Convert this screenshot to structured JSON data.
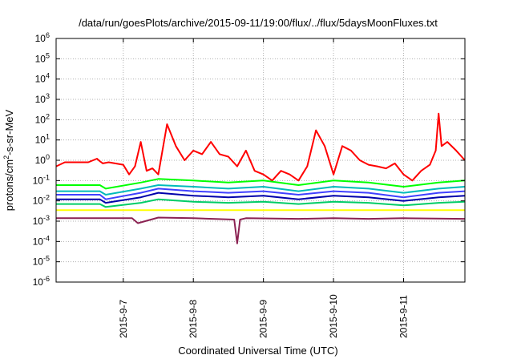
{
  "chart_data": {
    "type": "line",
    "title": "/data/run/goesPlots/archive/2015-09-11/19:00/flux/../flux/5daysMoonFluxes.txt",
    "xlabel": "Coordinated Universal Time (UTC)",
    "ylabel": {
      "pre": "protons/cm",
      "sup": "2",
      "post": "-s-sr-MeV"
    },
    "x_range": [
      "2015-09-06 01:00",
      "2015-09-11 21:00"
    ],
    "x_ticks": [
      "2015-9-7",
      "2015-9-8",
      "2015-9-9",
      "2015-9-10",
      "2015-9-11"
    ],
    "y_scale": "log",
    "ylim": [
      1e-06,
      1000000.0
    ],
    "y_ticks": [
      {
        "base": "10",
        "exp": "-6"
      },
      {
        "base": "10",
        "exp": "-5"
      },
      {
        "base": "10",
        "exp": "-4"
      },
      {
        "base": "10",
        "exp": "-3"
      },
      {
        "base": "10",
        "exp": "-2"
      },
      {
        "base": "10",
        "exp": "-1"
      },
      {
        "base": "10",
        "exp": "0"
      },
      {
        "base": "10",
        "exp": "1"
      },
      {
        "base": "10",
        "exp": "2"
      },
      {
        "base": "10",
        "exp": "3"
      },
      {
        "base": "10",
        "exp": "4"
      },
      {
        "base": "10",
        "exp": "5"
      },
      {
        "base": "10",
        "exp": "6"
      }
    ],
    "grid": true,
    "series": [
      {
        "color": "#ff0000",
        "x": [
          "2015-09-06 01:00",
          "2015-09-06 04:00",
          "2015-09-06 06:00",
          "2015-09-06 12:00",
          "2015-09-06 15:00",
          "2015-09-06 16:00",
          "2015-09-06 17:00",
          "2015-09-06 19:00",
          "2015-09-07 00:00",
          "2015-09-07 02:00",
          "2015-09-07 04:00",
          "2015-09-07 06:00",
          "2015-09-07 08:00",
          "2015-09-07 10:00",
          "2015-09-07 12:00",
          "2015-09-07 15:00",
          "2015-09-07 18:00",
          "2015-09-07 21:00",
          "2015-09-08 00:00",
          "2015-09-08 03:00",
          "2015-09-08 06:00",
          "2015-09-08 09:00",
          "2015-09-08 12:00",
          "2015-09-08 15:00",
          "2015-09-08 18:00",
          "2015-09-08 21:00",
          "2015-09-09 00:00",
          "2015-09-09 03:00",
          "2015-09-09 06:00",
          "2015-09-09 09:00",
          "2015-09-09 12:00",
          "2015-09-09 15:00",
          "2015-09-09 18:00",
          "2015-09-09 21:00",
          "2015-09-10 00:00",
          "2015-09-10 03:00",
          "2015-09-10 06:00",
          "2015-09-10 09:00",
          "2015-09-10 12:00",
          "2015-09-10 15:00",
          "2015-09-10 18:00",
          "2015-09-10 21:00",
          "2015-09-11 00:00",
          "2015-09-11 03:00",
          "2015-09-11 06:00",
          "2015-09-11 09:00",
          "2015-09-11 11:00",
          "2015-09-11 12:00",
          "2015-09-11 13:00",
          "2015-09-11 15:00",
          "2015-09-11 18:00",
          "2015-09-11 21:00"
        ],
        "y": [
          0.5,
          0.8,
          0.8,
          0.8,
          1.2,
          0.9,
          0.7,
          0.8,
          0.6,
          0.2,
          0.5,
          8,
          0.3,
          0.4,
          0.2,
          60,
          5,
          1,
          3,
          2,
          8,
          2,
          1.5,
          0.5,
          3,
          0.3,
          0.2,
          0.1,
          0.3,
          0.2,
          0.1,
          0.5,
          30,
          5,
          0.2,
          5,
          3,
          1,
          0.6,
          0.5,
          0.4,
          0.7,
          0.2,
          0.1,
          0.3,
          0.6,
          3,
          200,
          5,
          8,
          3,
          1
        ]
      },
      {
        "color": "#00ff00",
        "x": [
          "2015-09-06 01:00",
          "2015-09-06 16:00",
          "2015-09-06 18:00",
          "2015-09-07 06:00",
          "2015-09-07 12:00",
          "2015-09-08 00:00",
          "2015-09-08 12:00",
          "2015-09-09 00:00",
          "2015-09-09 12:00",
          "2015-09-10 00:00",
          "2015-09-10 12:00",
          "2015-09-11 00:00",
          "2015-09-11 12:00",
          "2015-09-11 21:00"
        ],
        "y": [
          0.06,
          0.06,
          0.04,
          0.08,
          0.12,
          0.1,
          0.08,
          0.1,
          0.06,
          0.1,
          0.08,
          0.05,
          0.08,
          0.1
        ]
      },
      {
        "color": "#00bbbb",
        "x": [
          "2015-09-06 01:00",
          "2015-09-06 16:00",
          "2015-09-06 18:00",
          "2015-09-07 06:00",
          "2015-09-07 12:00",
          "2015-09-08 00:00",
          "2015-09-08 12:00",
          "2015-09-09 00:00",
          "2015-09-09 12:00",
          "2015-09-10 00:00",
          "2015-09-10 12:00",
          "2015-09-11 00:00",
          "2015-09-11 12:00",
          "2015-09-11 21:00"
        ],
        "y": [
          0.03,
          0.03,
          0.02,
          0.04,
          0.06,
          0.05,
          0.04,
          0.05,
          0.03,
          0.05,
          0.04,
          0.025,
          0.04,
          0.05
        ]
      },
      {
        "color": "#4040ff",
        "x": [
          "2015-09-06 01:00",
          "2015-09-06 16:00",
          "2015-09-06 18:00",
          "2015-09-07 06:00",
          "2015-09-07 12:00",
          "2015-09-08 00:00",
          "2015-09-08 12:00",
          "2015-09-09 00:00",
          "2015-09-09 12:00",
          "2015-09-10 00:00",
          "2015-09-10 12:00",
          "2015-09-11 00:00",
          "2015-09-11 12:00",
          "2015-09-11 21:00"
        ],
        "y": [
          0.02,
          0.02,
          0.012,
          0.025,
          0.04,
          0.03,
          0.025,
          0.03,
          0.02,
          0.03,
          0.025,
          0.015,
          0.025,
          0.03
        ]
      },
      {
        "color": "#0000aa",
        "x": [
          "2015-09-06 01:00",
          "2015-09-06 16:00",
          "2015-09-06 18:00",
          "2015-09-07 06:00",
          "2015-09-07 12:00",
          "2015-09-08 00:00",
          "2015-09-08 12:00",
          "2015-09-09 00:00",
          "2015-09-09 12:00",
          "2015-09-10 00:00",
          "2015-09-10 12:00",
          "2015-09-11 00:00",
          "2015-09-11 12:00",
          "2015-09-11 21:00"
        ],
        "y": [
          0.012,
          0.012,
          0.008,
          0.015,
          0.025,
          0.018,
          0.015,
          0.018,
          0.012,
          0.018,
          0.015,
          0.01,
          0.015,
          0.018
        ]
      },
      {
        "color": "#00cc66",
        "x": [
          "2015-09-06 01:00",
          "2015-09-06 16:00",
          "2015-09-06 18:00",
          "2015-09-07 06:00",
          "2015-09-07 12:00",
          "2015-09-08 00:00",
          "2015-09-08 12:00",
          "2015-09-09 00:00",
          "2015-09-09 12:00",
          "2015-09-10 00:00",
          "2015-09-10 12:00",
          "2015-09-11 00:00",
          "2015-09-11 12:00",
          "2015-09-11 21:00"
        ],
        "y": [
          0.007,
          0.007,
          0.005,
          0.008,
          0.012,
          0.009,
          0.008,
          0.009,
          0.007,
          0.009,
          0.008,
          0.006,
          0.008,
          0.009
        ]
      },
      {
        "color": "#ffff00",
        "x": [
          "2015-09-06 01:00",
          "2015-09-11 21:00"
        ],
        "y": [
          0.0035,
          0.0035
        ]
      },
      {
        "color": "#8b2252",
        "x": [
          "2015-09-06 01:00",
          "2015-09-07 03:00",
          "2015-09-07 05:00",
          "2015-09-07 12:00",
          "2015-09-08 00:00",
          "2015-09-08 14:00",
          "2015-09-08 15:00",
          "2015-09-08 16:00",
          "2015-09-08 18:00",
          "2015-09-09 12:00",
          "2015-09-10 00:00",
          "2015-09-10 12:00",
          "2015-09-11 00:00",
          "2015-09-11 21:00"
        ],
        "y": [
          0.0014,
          0.0014,
          0.0008,
          0.0015,
          0.0014,
          0.0012,
          8e-05,
          0.0012,
          0.0014,
          0.0013,
          0.0014,
          0.0013,
          0.0014,
          0.0013
        ]
      }
    ]
  }
}
